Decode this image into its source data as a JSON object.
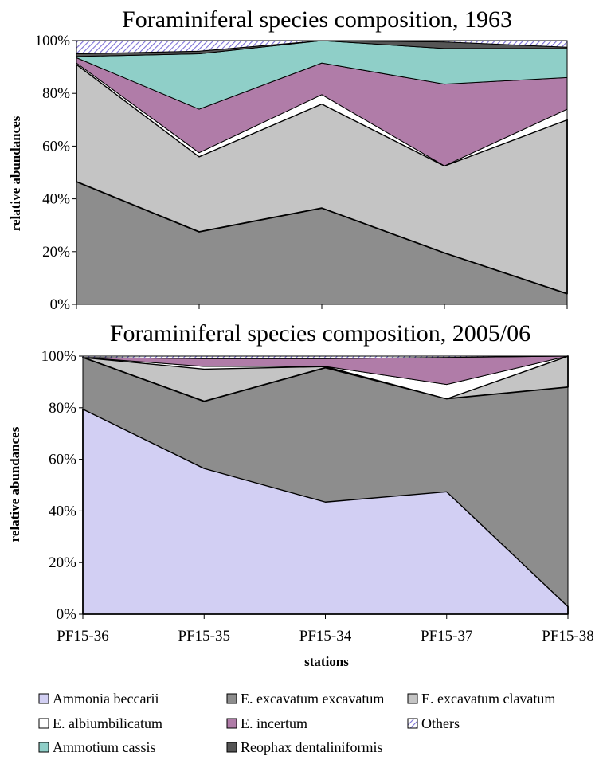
{
  "colors": {
    "Ammonia beccarii": "#d2cff3",
    "E. excavatum excavatum": "#8d8d8d",
    "E. excavatum clavatum": "#c4c4c4",
    "E. albiumbilicatum": "#ffffff",
    "E. incertum": "#b07ca8",
    "Others": "#ffffff",
    "Ammotium cassis": "#8fcfc8",
    "Reophax dentaliniformis": "#555555"
  },
  "legend": {
    "items": [
      {
        "label": "Ammonia beccarii",
        "icon": "swatch-lavender"
      },
      {
        "label": "E. excavatum excavatum",
        "icon": "swatch-dark-grey"
      },
      {
        "label": "E. excavatum clavatum",
        "icon": "swatch-light-grey"
      },
      {
        "label": "E. albiumbilicatum",
        "icon": "swatch-white"
      },
      {
        "label": "E. incertum",
        "icon": "swatch-purple"
      },
      {
        "label": "Others",
        "icon": "swatch-hatched"
      },
      {
        "label": "Ammotium cassis",
        "icon": "swatch-teal"
      },
      {
        "label": "Reophax dentaliniformis",
        "icon": "swatch-charcoal"
      }
    ]
  },
  "chart_data": [
    {
      "type": "area",
      "stacked": true,
      "title": "Foraminiferal species composition, 1963",
      "xlabel": "",
      "ylabel": "relative abundances",
      "categories": [
        "PF15-36",
        "PF15-35",
        "PF15-34",
        "PF15-37",
        "PF15-38"
      ],
      "yticks": [
        "0%",
        "20%",
        "40%",
        "60%",
        "80%",
        "100%"
      ],
      "ylim": [
        0,
        100
      ],
      "grid": false,
      "series": [
        {
          "name": "E. excavatum excavatum",
          "values": [
            46.5,
            27.5,
            36.5,
            19.5,
            4
          ]
        },
        {
          "name": "E. excavatum clavatum",
          "values": [
            44.5,
            28.5,
            39.5,
            33,
            66
          ]
        },
        {
          "name": "E. albiumbilicatum",
          "values": [
            0.5,
            1.5,
            3.5,
            0,
            4
          ]
        },
        {
          "name": "E. incertum",
          "values": [
            2,
            16.5,
            12,
            31,
            12
          ]
        },
        {
          "name": "Ammotium cassis",
          "values": [
            0.5,
            21,
            8.5,
            13.5,
            11
          ]
        },
        {
          "name": "Reophax dentaliniformis",
          "values": [
            1,
            1,
            0,
            2.5,
            0.5
          ]
        },
        {
          "name": "Others",
          "values": [
            5,
            4,
            0,
            0.5,
            2.5
          ]
        }
      ]
    },
    {
      "type": "area",
      "stacked": true,
      "title": "Foraminiferal species composition, 2005/06",
      "xlabel": "stations",
      "ylabel": "relative abundances",
      "categories": [
        "PF15-36",
        "PF15-35",
        "PF15-34",
        "PF15-37",
        "PF15-38"
      ],
      "yticks": [
        "0%",
        "20%",
        "40%",
        "60%",
        "80%",
        "100%"
      ],
      "ylim": [
        0,
        100
      ],
      "grid": false,
      "series": [
        {
          "name": "Ammonia beccarii",
          "values": [
            79.5,
            56.5,
            43.5,
            47.5,
            3
          ]
        },
        {
          "name": "E. excavatum excavatum",
          "values": [
            20,
            26,
            52,
            36,
            85
          ]
        },
        {
          "name": "E. excavatum clavatum",
          "values": [
            0,
            12.5,
            0.5,
            0,
            12
          ]
        },
        {
          "name": "E. albiumbilicatum",
          "values": [
            0,
            1,
            0,
            5.5,
            0
          ]
        },
        {
          "name": "E. incertum",
          "values": [
            0,
            3,
            3,
            10.5,
            0
          ]
        },
        {
          "name": "Others",
          "values": [
            0.5,
            1,
            1,
            0.5,
            0
          ]
        }
      ]
    }
  ]
}
